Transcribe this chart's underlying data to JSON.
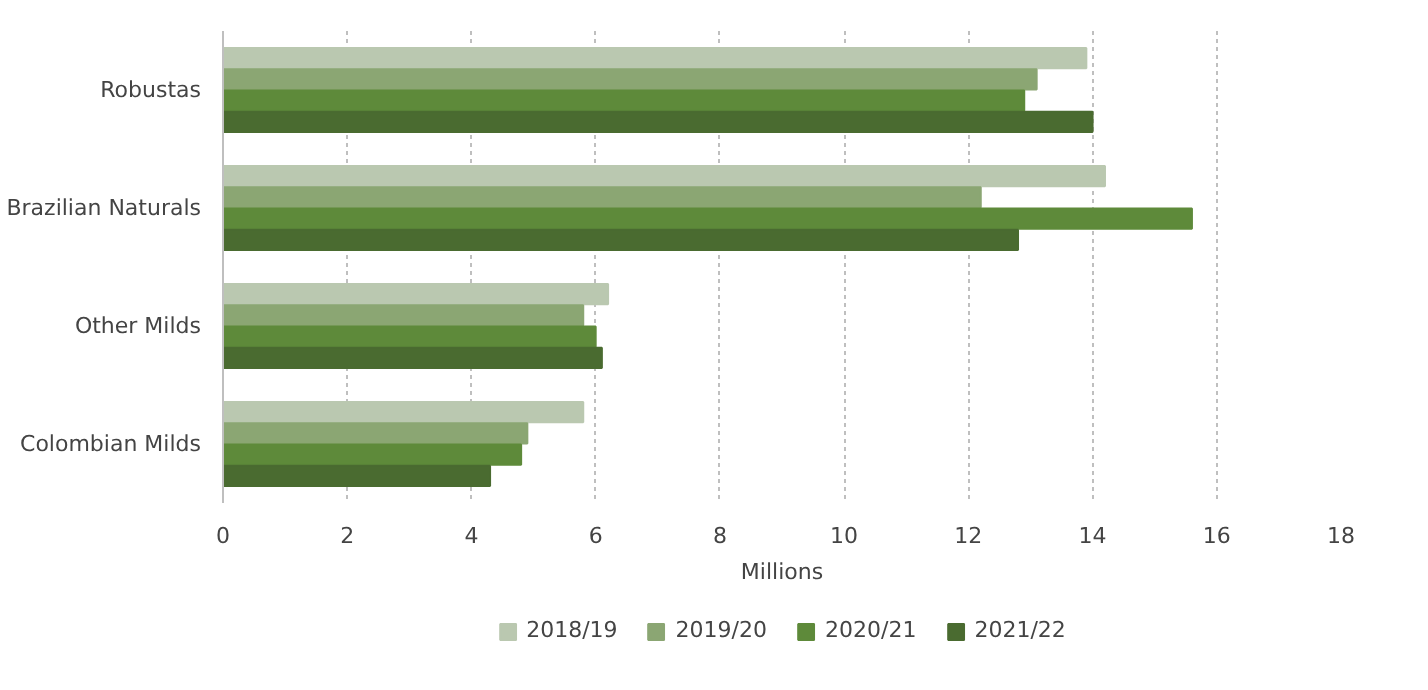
{
  "chart_data": {
    "type": "bar",
    "orientation": "horizontal",
    "xlabel": "Millions",
    "categories": [
      "Robustas",
      "Brazilian Naturals",
      "Other Milds",
      "Colombian Milds"
    ],
    "series": [
      {
        "name": "2018/19",
        "color": "#bac8b0",
        "values": [
          13.9,
          14.2,
          6.2,
          5.8
        ]
      },
      {
        "name": "2019/20",
        "color": "#8ba673",
        "values": [
          13.1,
          12.2,
          5.8,
          4.9
        ]
      },
      {
        "name": "2020/21",
        "color": "#5e8a3a",
        "values": [
          12.9,
          15.6,
          6.0,
          4.8
        ]
      },
      {
        "name": "2021/22",
        "color": "#4a6b30",
        "values": [
          14.0,
          12.8,
          6.1,
          4.3
        ]
      }
    ],
    "xlim": [
      0,
      18
    ],
    "xticks": [
      0,
      2,
      4,
      6,
      8,
      10,
      12,
      14,
      16,
      18
    ],
    "grid": "x",
    "legend": "bottom"
  }
}
